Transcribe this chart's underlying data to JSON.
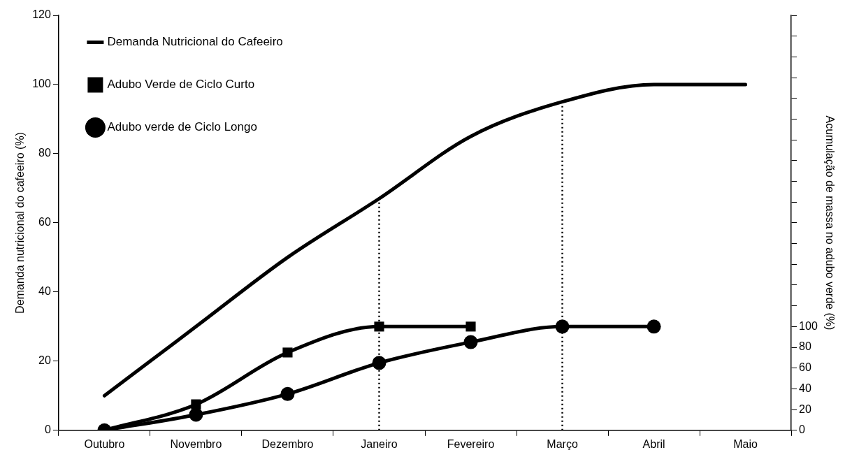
{
  "chart_data": {
    "type": "line",
    "ylabel": "Demanda nutricional do cafeeiro (%)",
    "y2label": "Acumulação de massa no adubo verde (%)",
    "categories": [
      "Outubro",
      "Novembro",
      "Dezembro",
      "Janeiro",
      "Fevereiro",
      "Março",
      "Abril",
      "Maio"
    ],
    "ylim": [
      0,
      120
    ],
    "yticks": [
      0,
      20,
      40,
      60,
      80,
      100,
      120
    ],
    "y2lim": [
      0,
      400
    ],
    "y2ticks": [
      0,
      20,
      40,
      60,
      80,
      100,
      {
        "value": 120,
        "label": null
      },
      {
        "value": 140,
        "label": null
      },
      {
        "value": 160,
        "label": null
      },
      {
        "value": 180,
        "label": null
      },
      {
        "value": 200,
        "label": null
      },
      {
        "value": 220,
        "label": null
      },
      {
        "value": 240,
        "label": null
      },
      {
        "value": 260,
        "label": null
      },
      {
        "value": 280,
        "label": null
      },
      {
        "value": 300,
        "label": null
      },
      {
        "value": 320,
        "label": null
      },
      {
        "value": 340,
        "label": null
      },
      {
        "value": 360,
        "label": null
      },
      {
        "value": 380,
        "label": null
      },
      {
        "value": 400,
        "label": null
      }
    ],
    "series": [
      {
        "name": "Demanda Nutricional do Cafeeiro",
        "color": "#000000",
        "marker": "none",
        "values": [
          10,
          30,
          50,
          67,
          85,
          95,
          100,
          100
        ]
      },
      {
        "name": "Adubo Verde de Ciclo Curto",
        "color": "#000000",
        "marker": "square",
        "axis": "y2",
        "values": [
          0,
          25,
          75,
          100,
          100,
          null,
          null,
          null
        ]
      },
      {
        "name": "Adubo verde de Ciclo Longo",
        "color": "#000000",
        "marker": "circle",
        "axis": "y2",
        "values": [
          0,
          15,
          35,
          65,
          85,
          100,
          100,
          null
        ]
      }
    ],
    "ref_lines": [
      {
        "axis": "x",
        "value": "Janeiro",
        "color": "#000000",
        "line_style": "dotted"
      },
      {
        "axis": "x",
        "value": "Março",
        "color": "#000000",
        "line_style": "dotted"
      }
    ],
    "legend": "top left"
  }
}
